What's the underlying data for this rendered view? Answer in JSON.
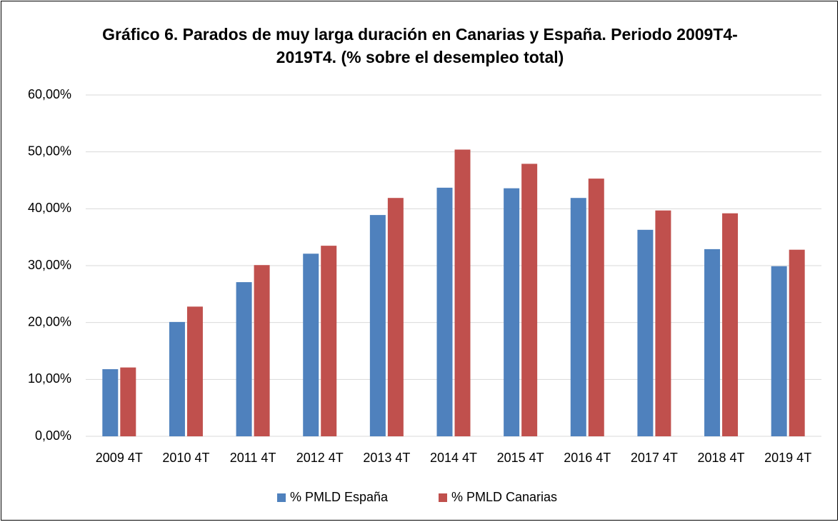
{
  "chart_data": {
    "type": "bar",
    "title": "Gráfico 6. Parados de muy larga duración en Canarias y España. Periodo 2009T4-2019T4. (% sobre el desempleo total)",
    "categories": [
      "2009 4T",
      "2010 4T",
      "2011 4T",
      "2012 4T",
      "2013 4T",
      "2014 4T",
      "2015 4T",
      "2016 4T",
      "2017 4T",
      "2018 4T",
      "2019 4T"
    ],
    "series": [
      {
        "name": "% PMLD España",
        "color": "#4f81bd",
        "values": [
          11.8,
          20.1,
          27.1,
          32.1,
          38.9,
          43.7,
          43.6,
          41.9,
          36.3,
          32.9,
          29.9
        ]
      },
      {
        "name": "% PMLD Canarias",
        "color": "#c0504d",
        "values": [
          12.1,
          22.8,
          30.1,
          33.5,
          41.9,
          50.4,
          47.9,
          45.3,
          39.7,
          39.2,
          32.8
        ]
      }
    ],
    "ylim": [
      0,
      60
    ],
    "yticks": [
      {
        "value": 0,
        "label": "0,00%"
      },
      {
        "value": 10,
        "label": "10,00%"
      },
      {
        "value": 20,
        "label": "20,00%"
      },
      {
        "value": 30,
        "label": "30,00%"
      },
      {
        "value": 40,
        "label": "40,00%"
      },
      {
        "value": 50,
        "label": "50,00%"
      },
      {
        "value": 60,
        "label": "60,00%"
      }
    ],
    "grid": true,
    "legend": "bottom"
  }
}
